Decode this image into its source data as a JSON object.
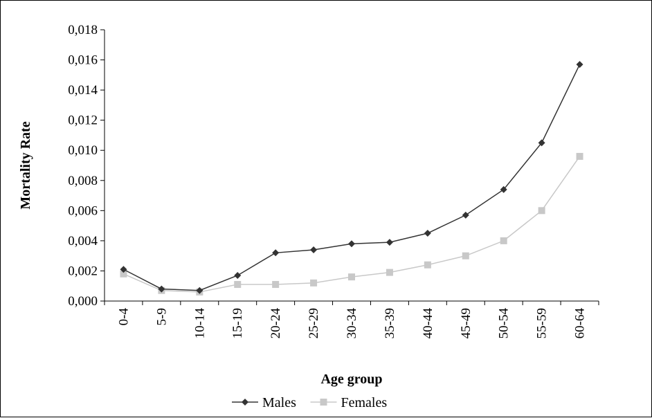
{
  "chart_data": {
    "type": "line",
    "title": "",
    "xlabel": "Age group",
    "ylabel": "Mortality Rate",
    "categories": [
      "0-4",
      "5-9",
      "10-14",
      "15-19",
      "20-24",
      "25-29",
      "30-34",
      "35-39",
      "40-44",
      "45-49",
      "50-54",
      "55-59",
      "60-64"
    ],
    "ylim": [
      0,
      0.018
    ],
    "yticks": [
      0,
      0.002,
      0.004,
      0.006,
      0.008,
      0.01,
      0.012,
      0.014,
      0.016,
      0.018
    ],
    "ytick_labels": [
      "0,000",
      "0,002",
      "0,004",
      "0,006",
      "0,008",
      "0,010",
      "0,012",
      "0,014",
      "0,016",
      "0,018"
    ],
    "grid": false,
    "legend_position": "bottom-center",
    "series": [
      {
        "name": "Males",
        "marker": "diamond",
        "color": "#333333",
        "values": [
          0.0021,
          0.0008,
          0.0007,
          0.0017,
          0.0032,
          0.0034,
          0.0038,
          0.0039,
          0.0045,
          0.0057,
          0.0074,
          0.0105,
          0.0157
        ]
      },
      {
        "name": "Females",
        "marker": "square",
        "color": "#c8c8c8",
        "values": [
          0.0018,
          0.0007,
          0.0006,
          0.0011,
          0.0011,
          0.0012,
          0.0016,
          0.0019,
          0.0024,
          0.003,
          0.004,
          0.006,
          0.0096
        ]
      }
    ]
  }
}
